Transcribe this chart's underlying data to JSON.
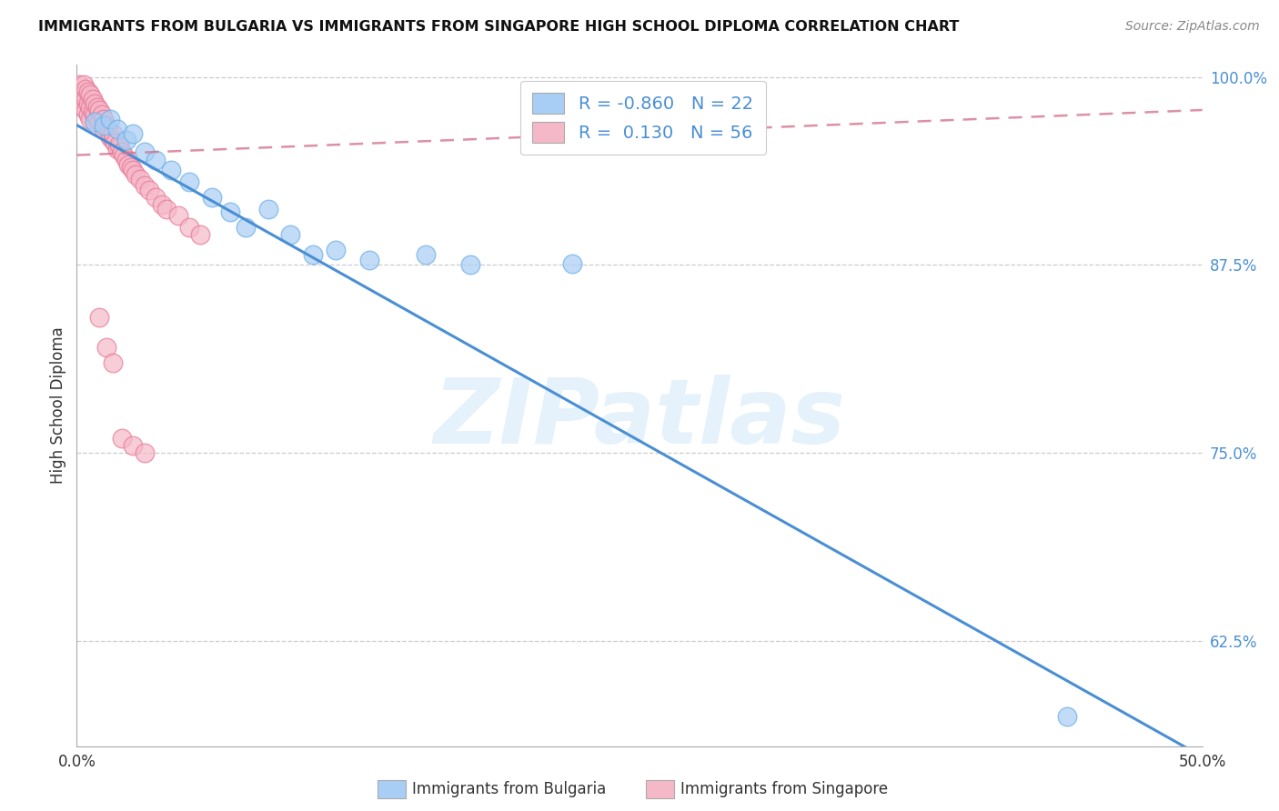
{
  "title": "IMMIGRANTS FROM BULGARIA VS IMMIGRANTS FROM SINGAPORE HIGH SCHOOL DIPLOMA CORRELATION CHART",
  "source": "Source: ZipAtlas.com",
  "ylabel": "High School Diploma",
  "xlim": [
    0.0,
    0.5
  ],
  "ylim": [
    0.555,
    1.008
  ],
  "yticks": [
    0.625,
    0.75,
    0.875,
    1.0
  ],
  "ytick_labels": [
    "62.5%",
    "75.0%",
    "87.5%",
    "100.0%"
  ],
  "xticks": [
    0.0,
    0.05,
    0.1,
    0.15,
    0.2,
    0.25,
    0.3,
    0.35,
    0.4,
    0.45,
    0.5
  ],
  "xtick_labels_show": [
    "0.0%",
    "50.0%"
  ],
  "bulgaria_color": "#a8cef5",
  "bulgaria_edge_color": "#6aaee8",
  "singapore_color": "#f5b8c8",
  "singapore_edge_color": "#e87898",
  "bulgaria_line_color": "#4a8fd4",
  "singapore_line_color": "#d4758f",
  "bulgaria_R": -0.86,
  "bulgaria_N": 22,
  "singapore_R": 0.13,
  "singapore_N": 56,
  "watermark": "ZIPatlas",
  "legend_label_bulgaria": "Immigrants from Bulgaria",
  "legend_label_singapore": "Immigrants from Singapore",
  "bulgaria_x": [
    0.008,
    0.012,
    0.015,
    0.018,
    0.022,
    0.025,
    0.03,
    0.035,
    0.042,
    0.05,
    0.06,
    0.068,
    0.075,
    0.085,
    0.095,
    0.105,
    0.115,
    0.13,
    0.155,
    0.175,
    0.22,
    0.44
  ],
  "bulgaria_y": [
    0.97,
    0.968,
    0.972,
    0.965,
    0.958,
    0.962,
    0.95,
    0.945,
    0.938,
    0.93,
    0.92,
    0.91,
    0.9,
    0.912,
    0.895,
    0.882,
    0.885,
    0.878,
    0.882,
    0.875,
    0.876,
    0.575
  ],
  "singapore_x": [
    0.001,
    0.002,
    0.002,
    0.003,
    0.003,
    0.003,
    0.004,
    0.004,
    0.004,
    0.005,
    0.005,
    0.005,
    0.006,
    0.006,
    0.006,
    0.007,
    0.007,
    0.008,
    0.008,
    0.009,
    0.009,
    0.01,
    0.01,
    0.011,
    0.012,
    0.012,
    0.013,
    0.014,
    0.015,
    0.016,
    0.016,
    0.017,
    0.018,
    0.019,
    0.02,
    0.021,
    0.022,
    0.023,
    0.024,
    0.025,
    0.026,
    0.028,
    0.03,
    0.032,
    0.035,
    0.038,
    0.04,
    0.045,
    0.05,
    0.055,
    0.01,
    0.013,
    0.016,
    0.02,
    0.025,
    0.03
  ],
  "singapore_y": [
    0.995,
    0.99,
    0.985,
    0.995,
    0.988,
    0.98,
    0.992,
    0.985,
    0.978,
    0.99,
    0.982,
    0.975,
    0.988,
    0.98,
    0.972,
    0.985,
    0.977,
    0.982,
    0.975,
    0.98,
    0.972,
    0.978,
    0.97,
    0.975,
    0.972,
    0.965,
    0.968,
    0.965,
    0.96,
    0.958,
    0.962,
    0.956,
    0.952,
    0.955,
    0.95,
    0.948,
    0.945,
    0.942,
    0.94,
    0.938,
    0.935,
    0.932,
    0.928,
    0.925,
    0.92,
    0.915,
    0.912,
    0.908,
    0.9,
    0.895,
    0.84,
    0.82,
    0.81,
    0.76,
    0.755,
    0.75
  ],
  "bulgaria_trend_x0": 0.0,
  "bulgaria_trend_y0": 0.968,
  "bulgaria_trend_x1": 0.5,
  "bulgaria_trend_y1": 0.548,
  "singapore_trend_x0": 0.0,
  "singapore_trend_y0": 0.948,
  "singapore_trend_x1": 0.5,
  "singapore_trend_y1": 0.978
}
